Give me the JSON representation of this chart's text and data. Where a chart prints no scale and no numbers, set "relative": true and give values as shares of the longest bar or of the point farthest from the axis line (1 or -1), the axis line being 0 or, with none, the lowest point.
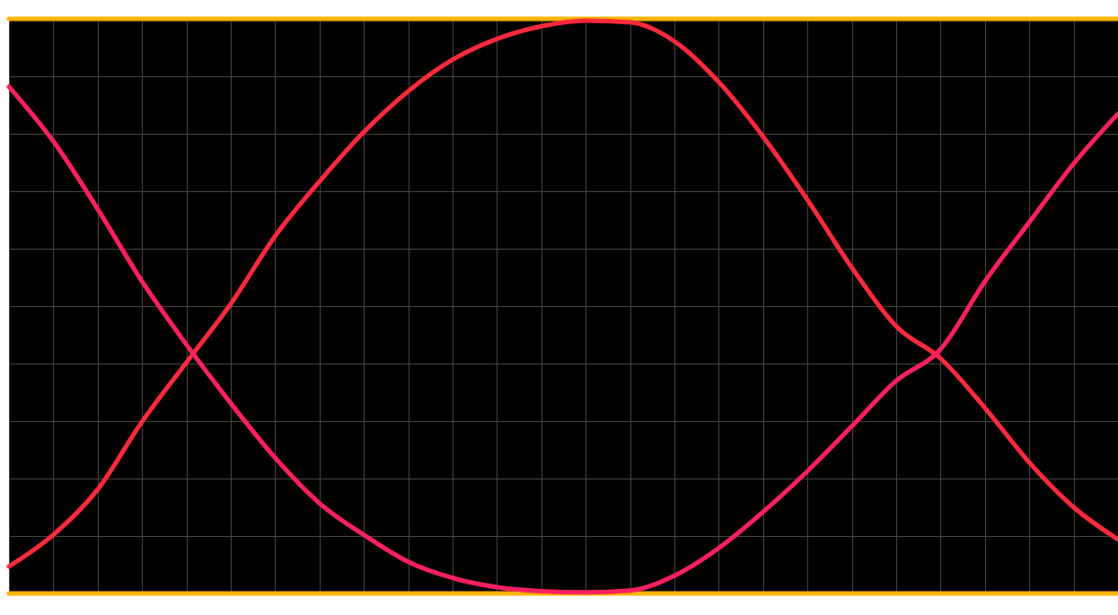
{
  "chart_data": {
    "type": "line",
    "relative": true,
    "grid": true,
    "categories": [
      null,
      null,
      null,
      null,
      null,
      null,
      null,
      null,
      null,
      null,
      null,
      null,
      null,
      null,
      null,
      null,
      null,
      null,
      null,
      null,
      null,
      null,
      null,
      null,
      null,
      null
    ],
    "series": [
      {
        "color": "#ffb400",
        "values": [
          1,
          1,
          1,
          1,
          1,
          1,
          1,
          1,
          1,
          1,
          1,
          1,
          1,
          1,
          1,
          1,
          1,
          1,
          1,
          1,
          1,
          1,
          1,
          1,
          1,
          1
        ]
      },
      {
        "color": "#ffb400",
        "values": [
          0,
          0,
          0,
          0,
          0,
          0,
          0,
          0,
          0,
          0,
          0,
          0,
          0,
          0,
          0,
          0,
          0,
          0,
          0,
          0,
          0,
          0,
          0,
          0,
          0,
          0
        ]
      },
      {
        "color": "#ff2a3c",
        "values": [
          0.047,
          0.102,
          0.181,
          0.299,
          0.402,
          0.504,
          0.622,
          0.717,
          0.803,
          0.874,
          0.929,
          0.965,
          0.987,
          0.997,
          0.994,
          0.961,
          0.89,
          0.795,
          0.685,
          0.567,
          0.465,
          0.409,
          0.323,
          0.228,
          0.15,
          0.094
        ]
      },
      {
        "color": "#ff2060",
        "values": [
          0.882,
          0.787,
          0.669,
          0.543,
          0.433,
          0.331,
          0.236,
          0.157,
          0.102,
          0.055,
          0.027,
          0.011,
          0.004,
          0.002,
          0.005,
          0.031,
          0.079,
          0.142,
          0.213,
          0.291,
          0.37,
          0.425,
          0.543,
          0.646,
          0.748,
          0.835
        ]
      }
    ]
  }
}
